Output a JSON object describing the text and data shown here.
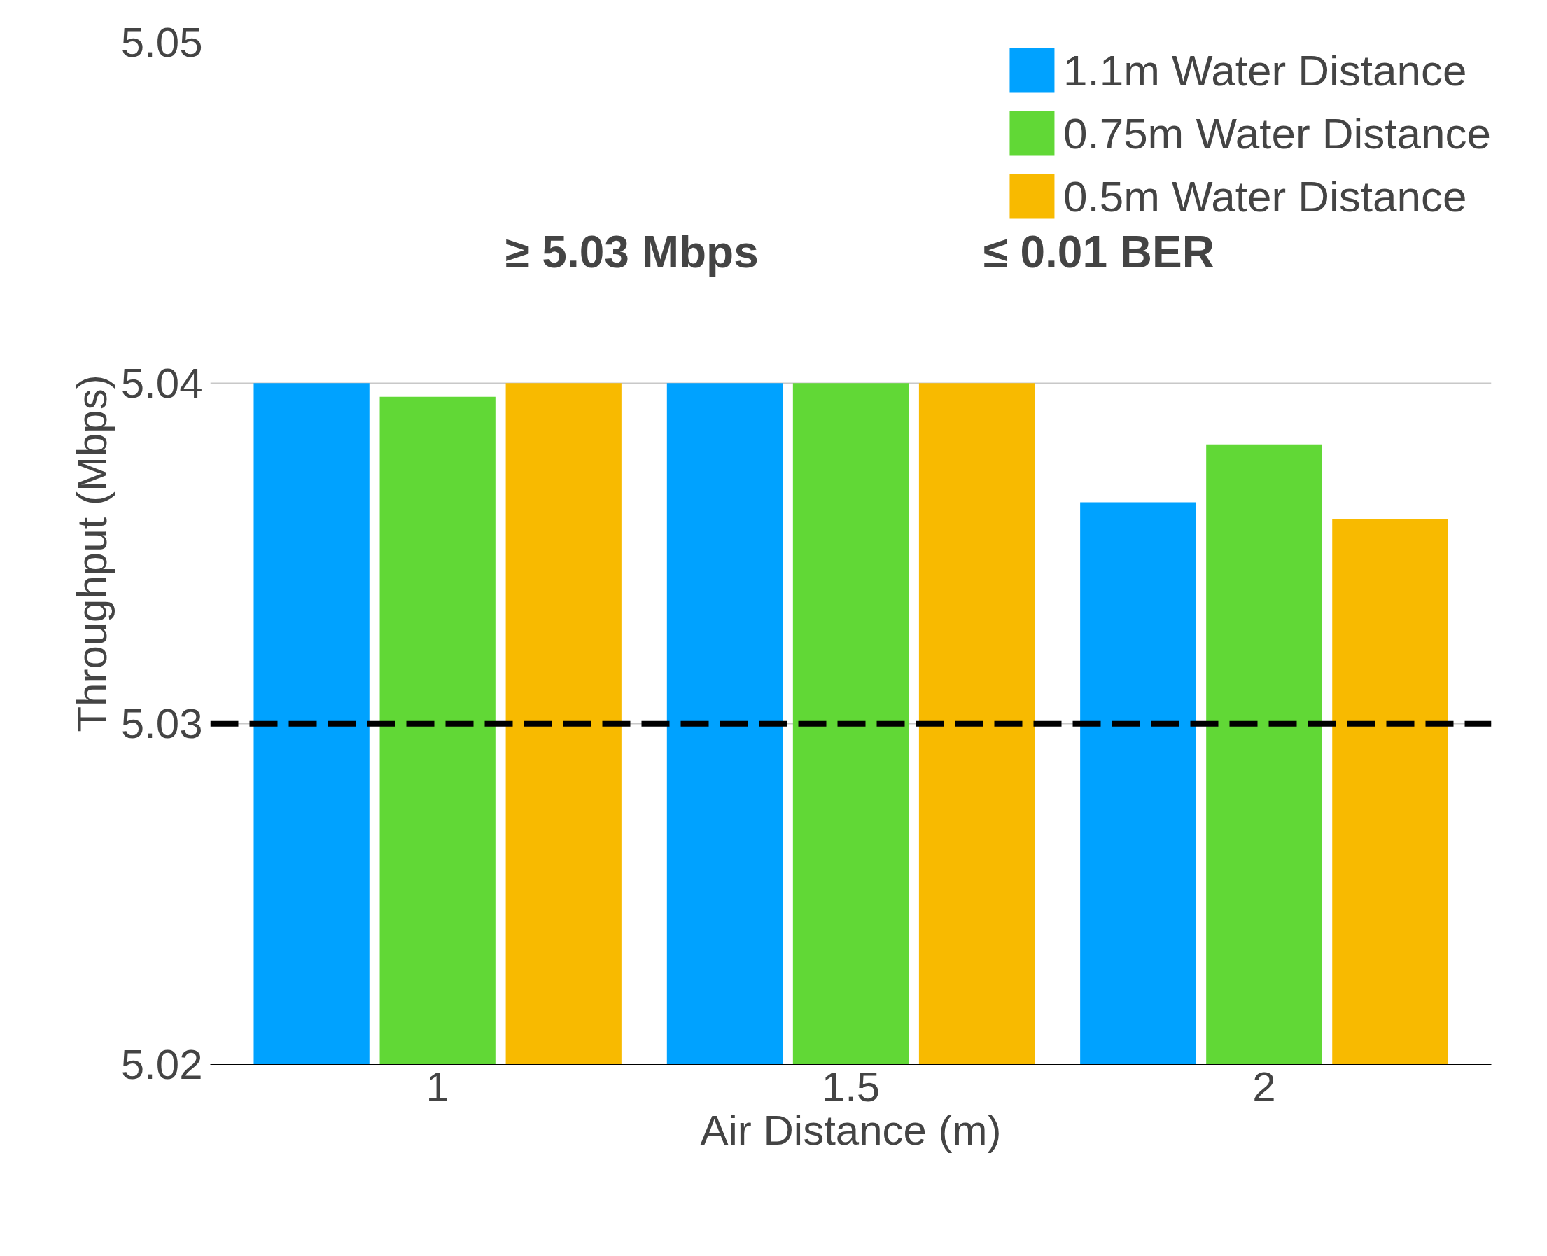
{
  "chart_data": {
    "type": "bar",
    "xlabel": "Air Distance (m)",
    "ylabel": "Throughput (Mbps)",
    "categories": [
      "1",
      "1.5",
      "2"
    ],
    "series": [
      {
        "name": "1.1m Water Distance",
        "color": "#00a2ff",
        "values": [
          5.04,
          5.04,
          5.0365
        ]
      },
      {
        "name": "0.75m Water Distance",
        "color": "#61d836",
        "values": [
          5.0396,
          5.04,
          5.0382
        ]
      },
      {
        "name": "0.5m Water Distance",
        "color": "#f8ba00",
        "values": [
          5.04,
          5.04,
          5.036
        ]
      }
    ],
    "ylim": [
      5.02,
      5.05
    ],
    "yticks": [
      5.02,
      5.03,
      5.04,
      5.05
    ],
    "grid": "y",
    "legend": "top right",
    "ref_lines": [
      {
        "axis": "y",
        "value": 5.03,
        "color": "#000000",
        "line_style": "dashed"
      }
    ],
    "annotations": [
      "≥ 5.03 Mbps",
      "≤ 0.01 BER"
    ]
  }
}
